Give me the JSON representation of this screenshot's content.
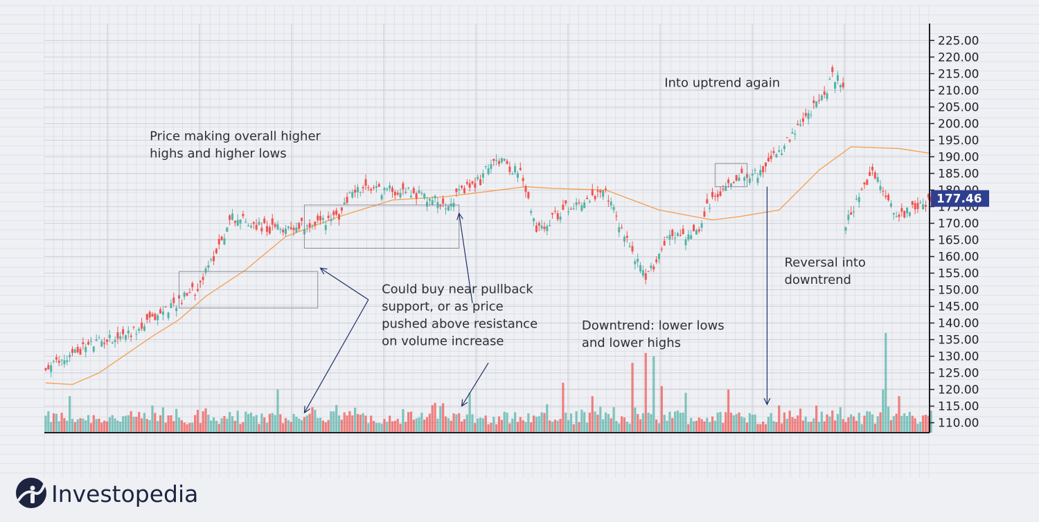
{
  "chart_data": {
    "type": "candlestick",
    "title": "",
    "xlabel": "",
    "ylabel": "",
    "ylim": [
      107,
      228
    ],
    "yticks": [
      110,
      115,
      120,
      125,
      130,
      135,
      140,
      145,
      150,
      155,
      160,
      165,
      170,
      175,
      180,
      185,
      190,
      195,
      200,
      205,
      210,
      215,
      220,
      225
    ],
    "tick_decimals": 2,
    "grid": true,
    "y_axis_side": "right",
    "last_price": "177.46",
    "colors": {
      "up": "#54b2a7",
      "down": "#ef5350",
      "moving_average": "#f3a35a",
      "annotation_line": "#1e2f66",
      "box": "#8a8d96",
      "price_tag_bg": "#2f3f8f"
    },
    "series": [
      {
        "type": "candlestick",
        "trend_path": [
          [
            0,
            126
          ],
          [
            15,
            133
          ],
          [
            35,
            138
          ],
          [
            45,
            144
          ],
          [
            56,
            150
          ],
          [
            60,
            155
          ],
          [
            70,
            172
          ],
          [
            85,
            168
          ],
          [
            100,
            170
          ],
          [
            110,
            172
          ],
          [
            115,
            180
          ],
          [
            135,
            180
          ],
          [
            150,
            176
          ],
          [
            163,
            183
          ],
          [
            168,
            190
          ],
          [
            178,
            185
          ],
          [
            184,
            168
          ],
          [
            196,
            175
          ],
          [
            210,
            179
          ],
          [
            218,
            165
          ],
          [
            225,
            153
          ],
          [
            234,
            167
          ],
          [
            241,
            166
          ],
          [
            245,
            167
          ],
          [
            248,
            175
          ],
          [
            260,
            185
          ],
          [
            268,
            185
          ],
          [
            280,
            196
          ],
          [
            291,
            208
          ],
          [
            294,
            212
          ],
          [
            293,
            215
          ],
          [
            299,
            212
          ],
          [
            300,
            170
          ],
          [
            310,
            185
          ],
          [
            320,
            172
          ],
          [
            325,
            175
          ],
          [
            332,
            177
          ]
        ]
      },
      {
        "type": "line",
        "values": [
          [
            0,
            122
          ],
          [
            10,
            121.5
          ],
          [
            20,
            125
          ],
          [
            40,
            136
          ],
          [
            50,
            141
          ],
          [
            60,
            148
          ],
          [
            75,
            156
          ],
          [
            90,
            166
          ],
          [
            110,
            172
          ],
          [
            130,
            177
          ],
          [
            150,
            178
          ],
          [
            170,
            180
          ],
          [
            180,
            181
          ],
          [
            190,
            180.5
          ],
          [
            210,
            180
          ],
          [
            230,
            174
          ],
          [
            250,
            171
          ],
          [
            260,
            172
          ],
          [
            275,
            174
          ],
          [
            290,
            186
          ],
          [
            302,
            193
          ],
          [
            320,
            192.5
          ],
          [
            332,
            191
          ]
        ]
      },
      {
        "type": "volume",
        "spikes": [
          [
            9,
            118
          ],
          [
            87,
            120
          ],
          [
            146,
            116
          ],
          [
            148,
            115
          ],
          [
            159,
            119
          ],
          [
            194,
            122
          ],
          [
            205,
            118
          ],
          [
            220,
            128
          ],
          [
            225,
            131
          ],
          [
            228,
            130
          ],
          [
            231,
            121
          ],
          [
            240,
            119
          ],
          [
            256,
            120
          ],
          [
            315,
            137
          ],
          [
            314,
            120
          ],
          [
            320,
            118
          ]
        ]
      }
    ],
    "annotations": [
      {
        "lines": [
          "Price making overall higher",
          "highs and higher lows"
        ],
        "x": 39,
        "y": 195
      },
      {
        "lines": [
          "Could buy near pullback",
          "support, or as price",
          "pushed above resistance",
          "on volume increase"
        ],
        "x": 126,
        "y": 149
      },
      {
        "lines": [
          "Into uptrend again"
        ],
        "x": 232,
        "y": 211
      },
      {
        "lines": [
          "Downtrend: lower lows",
          "and lower highs"
        ],
        "x": 201,
        "y": 138
      },
      {
        "lines": [
          "Reversal into",
          "downtrend"
        ],
        "x": 277,
        "y": 157
      }
    ],
    "boxes": [
      {
        "x0": 50,
        "x1": 102,
        "y0": 144.5,
        "y1": 155.5
      },
      {
        "x0": 97,
        "x1": 155,
        "y0": 162.5,
        "y1": 175.5
      },
      {
        "x0": 251,
        "x1": 263,
        "y0": 181,
        "y1": 188
      }
    ],
    "arrows": [
      {
        "from": [
          121,
          147
        ],
        "to": [
          103,
          156.5
        ]
      },
      {
        "from": [
          121,
          147
        ],
        "to": [
          97,
          113
        ]
      },
      {
        "from": [
          160,
          146
        ],
        "to": [
          155,
          173
        ]
      },
      {
        "from": [
          166,
          128
        ],
        "to": [
          156,
          115
        ]
      },
      {
        "from": [
          270.5,
          181
        ],
        "to": [
          270.5,
          115.5
        ]
      }
    ]
  },
  "logo": {
    "text": "Investopedia"
  }
}
